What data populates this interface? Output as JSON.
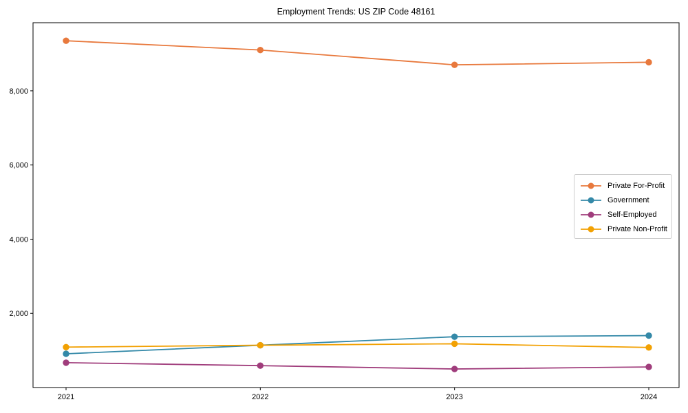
{
  "title": "Employment Trends: US ZIP Code 48161",
  "chart_data": {
    "type": "line",
    "title": "Employment Trends: US ZIP Code 48161",
    "xlabel": "",
    "ylabel": "",
    "x": [
      2021,
      2022,
      2023,
      2024
    ],
    "xtick_labels": [
      "2021",
      "2022",
      "2023",
      "2024"
    ],
    "yticks": [
      2000,
      4000,
      6000,
      8000
    ],
    "ytick_labels": [
      "2,000",
      "4,000",
      "6,000",
      "8,000"
    ],
    "ylim": [
      0,
      9836
    ],
    "grid": false,
    "legend_position": "center right",
    "series": [
      {
        "name": "Private For-Profit",
        "color": "#E8793D",
        "values": [
          9350,
          9100,
          8700,
          8770
        ]
      },
      {
        "name": "Government",
        "color": "#3489A8",
        "values": [
          910,
          1140,
          1370,
          1400
        ]
      },
      {
        "name": "Self-Employed",
        "color": "#A03D7C",
        "values": [
          670,
          590,
          500,
          555
        ]
      },
      {
        "name": "Private Non-Profit",
        "color": "#F2A103",
        "values": [
          1090,
          1140,
          1180,
          1080
        ]
      }
    ]
  }
}
